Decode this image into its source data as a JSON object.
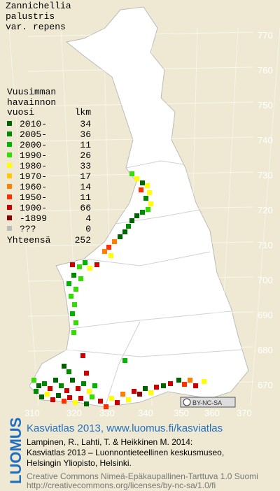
{
  "title": [
    "Zannichellia",
    "palustris",
    "var. repens"
  ],
  "legend": {
    "heading": [
      "Vuusimman",
      "havainnon"
    ],
    "col_year": "vuosi",
    "col_count": "lkm",
    "entries": [
      {
        "label": "2010-",
        "count": 34,
        "color": "#006400"
      },
      {
        "label": "2005-",
        "count": 36,
        "color": "#008a00"
      },
      {
        "label": "2000-",
        "count": 11,
        "color": "#00b400"
      },
      {
        "label": "1990-",
        "count": 26,
        "color": "#33dd00"
      },
      {
        "label": "1980-",
        "count": 33,
        "color": "#ffff00"
      },
      {
        "label": "1970-",
        "count": 17,
        "color": "#ffc800"
      },
      {
        "label": "1960-",
        "count": 14,
        "color": "#ff8000"
      },
      {
        "label": "1950-",
        "count": 11,
        "color": "#ff3000"
      },
      {
        "label": "1900-",
        "count": 66,
        "color": "#cc0000"
      },
      {
        "label": "-1899",
        "count": 4,
        "color": "#8b0000"
      },
      {
        "label": "???",
        "count": 0,
        "color": "#bbbbbb"
      }
    ],
    "total_label": "Yhteensä",
    "total": 252
  },
  "grid": {
    "north": [
      770,
      760,
      750,
      740,
      730,
      720,
      710,
      700,
      690,
      680,
      670
    ],
    "east": [
      310,
      320,
      330,
      340,
      350,
      360,
      370
    ]
  },
  "badge": "BY-NC-SA",
  "footer": {
    "logo": "LUOMUS",
    "link": "Kasviatlas 2013, www.luomus.fi/kasviatlas",
    "citation": [
      "Lampinen, R., Lahti, T. & Heikkinen M. 2014:",
      "Kasviatlas 2013 – Luonnontieteellinen keskusmuseo,",
      "Helsingin Yliopisto, Helsinki."
    ],
    "license": [
      "Creative Commons Nimeä-Epäkaupallinen-Tarttuva 1.0 Suomi",
      "http://creativecommons.org/licenses/by-nc-sa/1.0/fi"
    ]
  }
}
